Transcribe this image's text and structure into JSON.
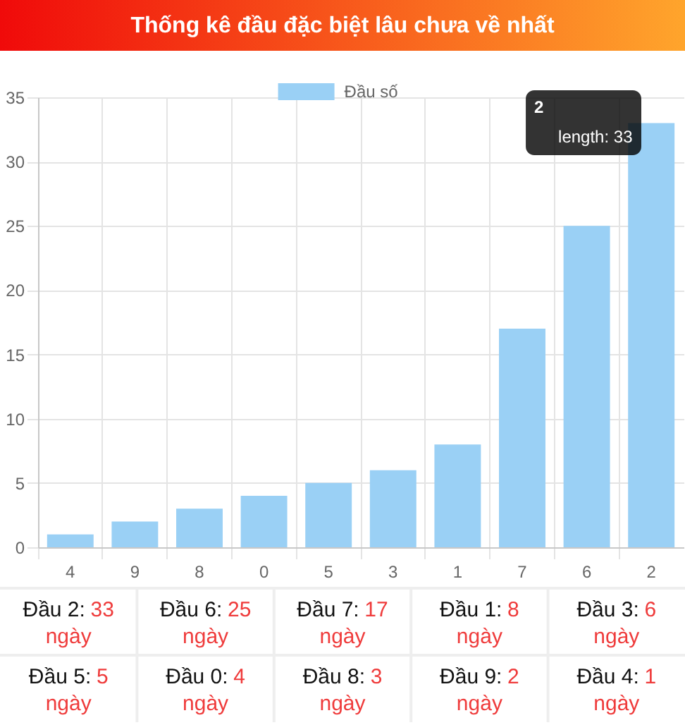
{
  "chart_data": {
    "type": "bar",
    "title": "Thống kê đầu đặc biệt lâu chưa về nhất",
    "categories": [
      "4",
      "9",
      "8",
      "0",
      "5",
      "3",
      "1",
      "7",
      "6",
      "2"
    ],
    "series": [
      {
        "name": "Đầu số",
        "color": "#9ad0f5",
        "values": [
          1,
          2,
          3,
          4,
          5,
          6,
          8,
          17,
          25,
          33
        ]
      }
    ],
    "ylim": [
      0,
      35
    ],
    "yticks": [
      0,
      5,
      10,
      15,
      20,
      25,
      30,
      35
    ],
    "grid": true,
    "legend": "top",
    "annotations": [
      "2",
      "length: 33",
      "Đầu 2: 33 ngày",
      "Đầu 6: 25 ngày",
      "Đầu 7: 17 ngày",
      "Đầu 1: 8 ngày",
      "Đầu 3: 6 ngày",
      "Đầu 5: 5 ngày",
      "Đầu 0: 4 ngày",
      "Đầu 8: 3 ngày",
      "Đầu 9: 2 ngày",
      "Đầu 4: 1 ngày"
    ]
  }
}
